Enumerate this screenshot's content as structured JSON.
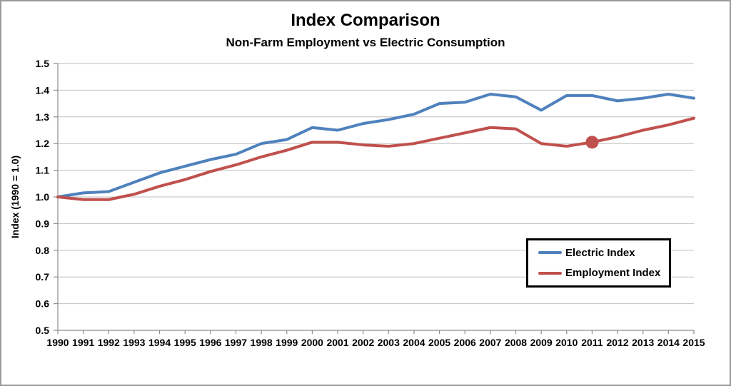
{
  "header": {
    "title": "Index Comparison",
    "subtitle": "Non-Farm Employment vs Electric Consumption"
  },
  "chart_data": {
    "type": "line",
    "title": "Index Comparison",
    "subtitle": "Non-Farm Employment vs Electric Consumption",
    "xlabel": "",
    "ylabel": "Index (1990 = 1.0)",
    "ylim": [
      0.5,
      1.5
    ],
    "ytick_step": 0.1,
    "grid": true,
    "legend_position": "inside-right",
    "x": [
      1990,
      1991,
      1992,
      1993,
      1994,
      1995,
      1996,
      1997,
      1998,
      1999,
      2000,
      2001,
      2002,
      2003,
      2004,
      2005,
      2006,
      2007,
      2008,
      2009,
      2010,
      2011,
      2012,
      2013,
      2014,
      2015
    ],
    "series": [
      {
        "name": "Electric Index",
        "color": "#4F81BD",
        "values": [
          1.0,
          1.015,
          1.02,
          1.055,
          1.09,
          1.115,
          1.14,
          1.16,
          1.2,
          1.215,
          1.26,
          1.25,
          1.275,
          1.29,
          1.31,
          1.35,
          1.355,
          1.385,
          1.375,
          1.325,
          1.38,
          1.38,
          1.36,
          1.37,
          1.385,
          1.37
        ]
      },
      {
        "name": "Employment Index",
        "color": "#C0504D",
        "values": [
          1.0,
          0.99,
          0.99,
          1.01,
          1.04,
          1.065,
          1.095,
          1.12,
          1.15,
          1.175,
          1.205,
          1.205,
          1.195,
          1.19,
          1.2,
          1.22,
          1.24,
          1.26,
          1.255,
          1.2,
          1.19,
          1.205,
          1.225,
          1.25,
          1.27,
          1.295
        ],
        "marker_point": {
          "year": 2011,
          "value": 1.205
        }
      }
    ],
    "style": {
      "grid_color": "#BFBFBF",
      "axis_color": "#8C8C8C",
      "tick_color": "#8C8C8C",
      "text_color": "#000000",
      "frame_border_color": "#9A9A9A",
      "background": "#FFFFFF",
      "line_width": 4,
      "marker_radius": 9
    }
  }
}
